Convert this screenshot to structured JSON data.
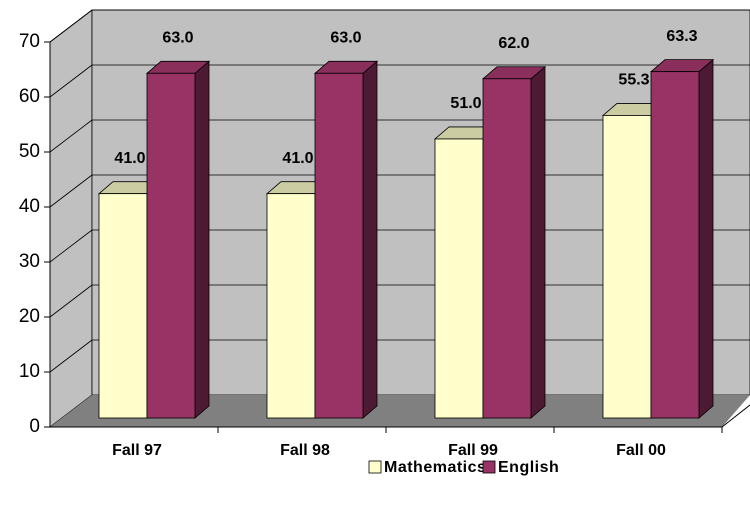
{
  "chart_data": {
    "type": "bar3d",
    "categories": [
      "Fall 97",
      "Fall 98",
      "Fall 99",
      "Fall 00"
    ],
    "series": [
      {
        "name": "Mathematics",
        "color": "#ffffcc",
        "values": [
          41.0,
          41.0,
          51.0,
          55.3
        ],
        "value_labels": [
          "41.0",
          "41.0",
          "51.0",
          "55.3"
        ]
      },
      {
        "name": "English",
        "color": "#993366",
        "values": [
          63.0,
          63.0,
          62.0,
          63.3
        ],
        "value_labels": [
          "63.0",
          "63.0",
          "62.0",
          "63.3"
        ]
      }
    ],
    "ylim": [
      0,
      70
    ],
    "yticks": [
      0,
      10,
      20,
      30,
      40,
      50,
      60,
      70
    ],
    "grid": true
  }
}
